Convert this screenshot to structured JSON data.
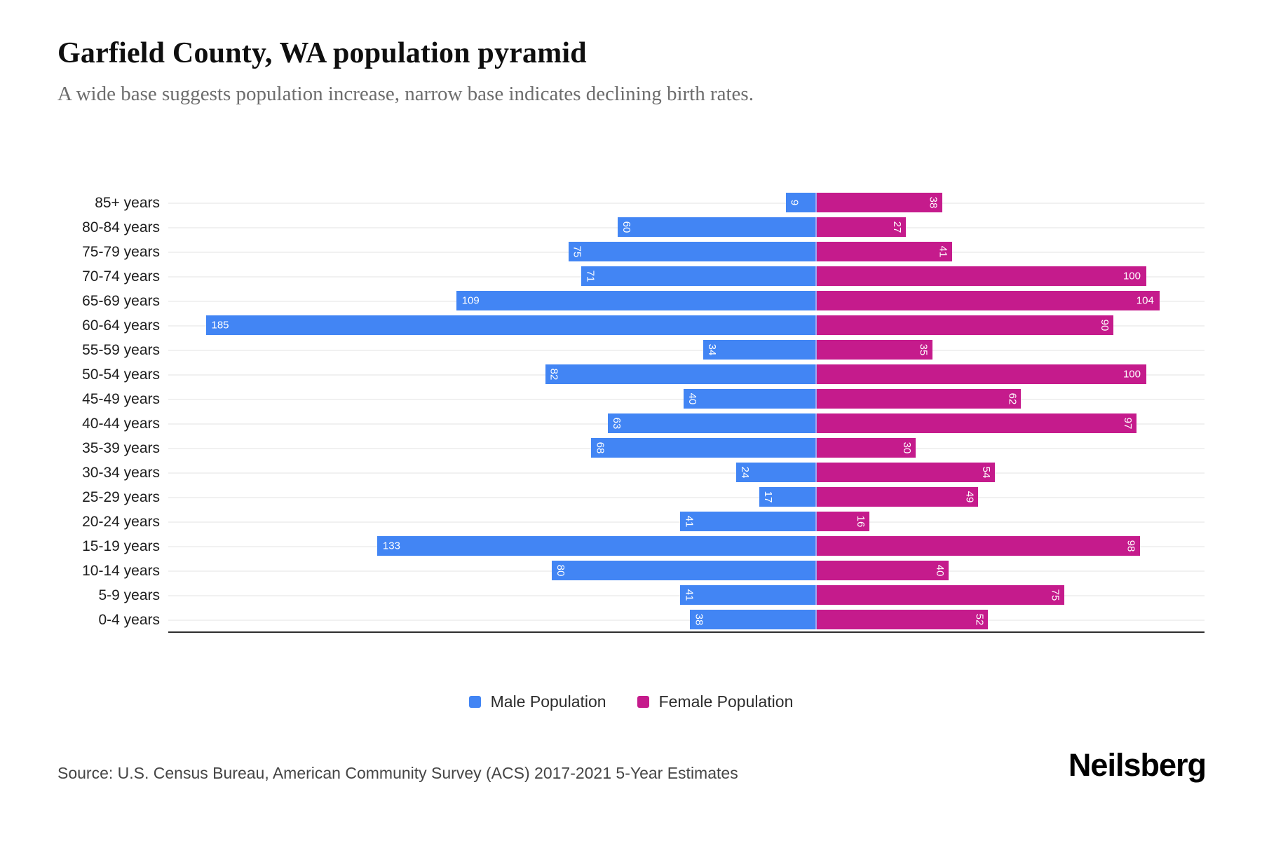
{
  "chart_data": {
    "type": "bar",
    "variant": "population-pyramid",
    "title": "Garfield County, WA population pyramid",
    "subtitle": "A wide base suggests population increase, narrow base indicates declining birth rates.",
    "categories": [
      "85+ years",
      "80-84 years",
      "75-79 years",
      "70-74 years",
      "65-69 years",
      "60-64 years",
      "55-59 years",
      "50-54 years",
      "45-49 years",
      "40-44 years",
      "35-39 years",
      "30-34 years",
      "25-29 years",
      "20-24 years",
      "15-19 years",
      "10-14 years",
      "5-9 years",
      "0-4 years"
    ],
    "series": [
      {
        "name": "Male Population",
        "color": "#4285F4",
        "direction": "left",
        "values": [
          9,
          60,
          75,
          71,
          109,
          185,
          34,
          82,
          40,
          63,
          68,
          24,
          17,
          41,
          133,
          80,
          41,
          38
        ]
      },
      {
        "name": "Female Population",
        "color": "#C51B8C",
        "direction": "right",
        "values": [
          38,
          27,
          41,
          100,
          104,
          90,
          35,
          100,
          62,
          97,
          30,
          54,
          49,
          16,
          98,
          40,
          75,
          52
        ]
      }
    ],
    "legend_position": "bottom",
    "grid": true,
    "value_labels": "inside-bar-far-end, rotated 90deg when value < 100",
    "colors": {
      "male": "#4285F4",
      "female": "#C51B8C",
      "center_divider": "#A3A4EE",
      "gridline": "#F1F1F1",
      "axis": "#2E2E2E"
    }
  },
  "footer": {
    "source": "Source: U.S. Census Bureau, American Community Survey (ACS) 2017-2021 5-Year Estimates",
    "brand": "Neilsberg"
  }
}
